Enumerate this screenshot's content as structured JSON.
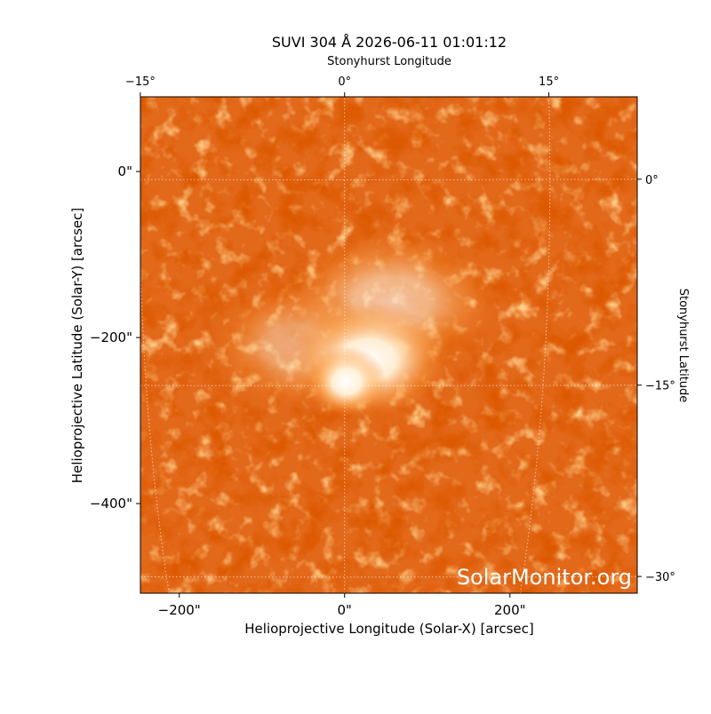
{
  "chart_data": {
    "type": "image",
    "title": "SUVI 304 Å 2026-06-11 01:01:12",
    "xlabel": "Helioprojective Longitude (Solar-X) [arcsec]",
    "ylabel": "Helioprojective Latitude (Solar-Y) [arcsec]",
    "top_label": "Stonyhurst Longitude",
    "right_label": "Stonyhurst Latitude",
    "xlim": [
      -247,
      354
    ],
    "ylim": [
      -508,
      90
    ],
    "xticks": [
      {
        "value": -200,
        "label": "−200\""
      },
      {
        "value": 0,
        "label": "0\""
      },
      {
        "value": 200,
        "label": "200\""
      }
    ],
    "yticks": [
      {
        "value": 0,
        "label": "0\""
      },
      {
        "value": -200,
        "label": "−200\""
      },
      {
        "value": -400,
        "label": "−400\""
      }
    ],
    "lon_ticks": [
      {
        "value": -15,
        "label": "−15°"
      },
      {
        "value": 0,
        "label": "0°"
      },
      {
        "value": 15,
        "label": "15°"
      }
    ],
    "lat_ticks": [
      {
        "value": 0,
        "label": "0°"
      },
      {
        "value": -15,
        "label": "−15°"
      },
      {
        "value": -30,
        "label": "−30°"
      }
    ],
    "grid": true,
    "watermark": "SolarMonitor.org"
  }
}
